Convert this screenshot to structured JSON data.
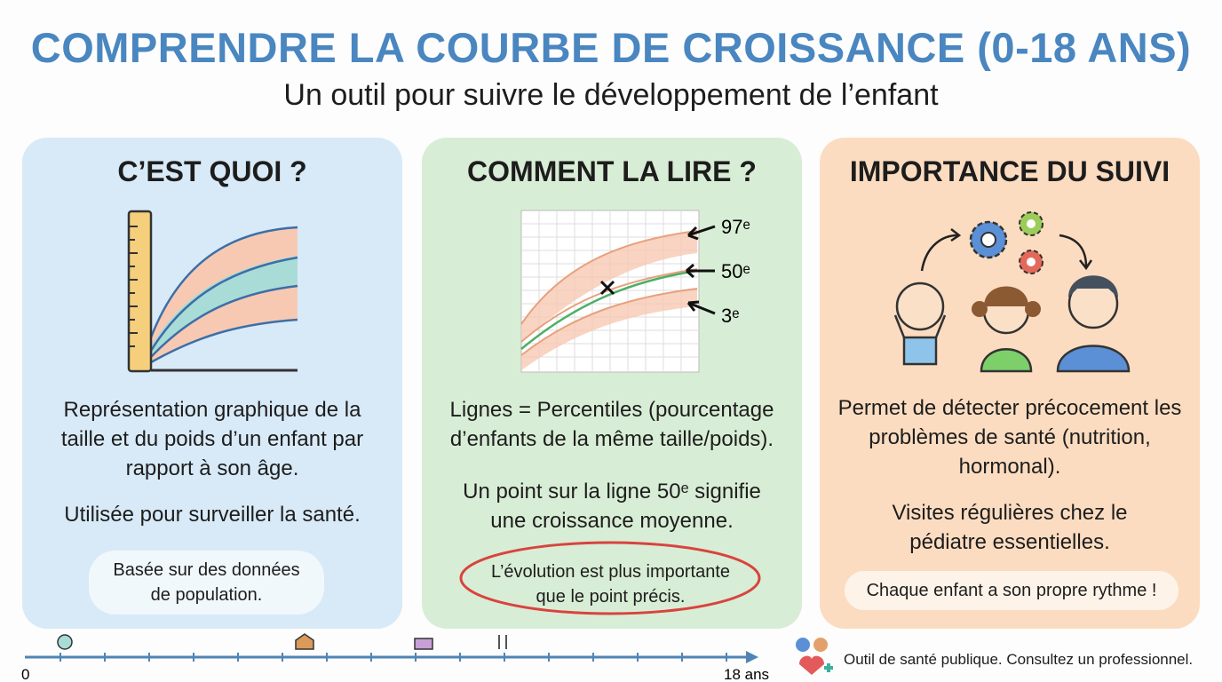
{
  "header": {
    "title": "COMPRENDRE LA COURBE DE CROISSANCE (0-18 ANS)",
    "subtitle": "Un outil pour suivre le développement de l’enfant"
  },
  "cards": [
    {
      "heading": "C’EST QUOI ?",
      "paragraphs": [
        "Représentation graphique de la taille et du poids d’un enfant par rapport à son âge.",
        "Utilisée pour surveiller la santé."
      ],
      "note": "Basée sur des données de population."
    },
    {
      "heading": "COMMENT LA LIRE ?",
      "percentiles": [
        "97ᵉ",
        "50ᵉ",
        "3ᵉ"
      ],
      "paragraphs": [
        "Lignes = Percentiles (pourcentage d’enfants de la même taille/poids).",
        "Un point sur la ligne 50ᵉ signifie une croissance moyenne."
      ],
      "note": "L’évolution est plus importante que le point précis."
    },
    {
      "heading": "IMPORTANCE DU SUIVI",
      "paragraphs": [
        "Permet de détecter précocement les problèmes de santé (nutrition, hormonal).",
        "Visites régulières chez le pédiatre essentielles."
      ],
      "note": "Chaque enfant a son propre rythme !"
    }
  ],
  "timeline": {
    "start": "0",
    "end": "18 ans"
  },
  "footer": {
    "text": "Outil de santé publique. Consultez un professionnel."
  }
}
